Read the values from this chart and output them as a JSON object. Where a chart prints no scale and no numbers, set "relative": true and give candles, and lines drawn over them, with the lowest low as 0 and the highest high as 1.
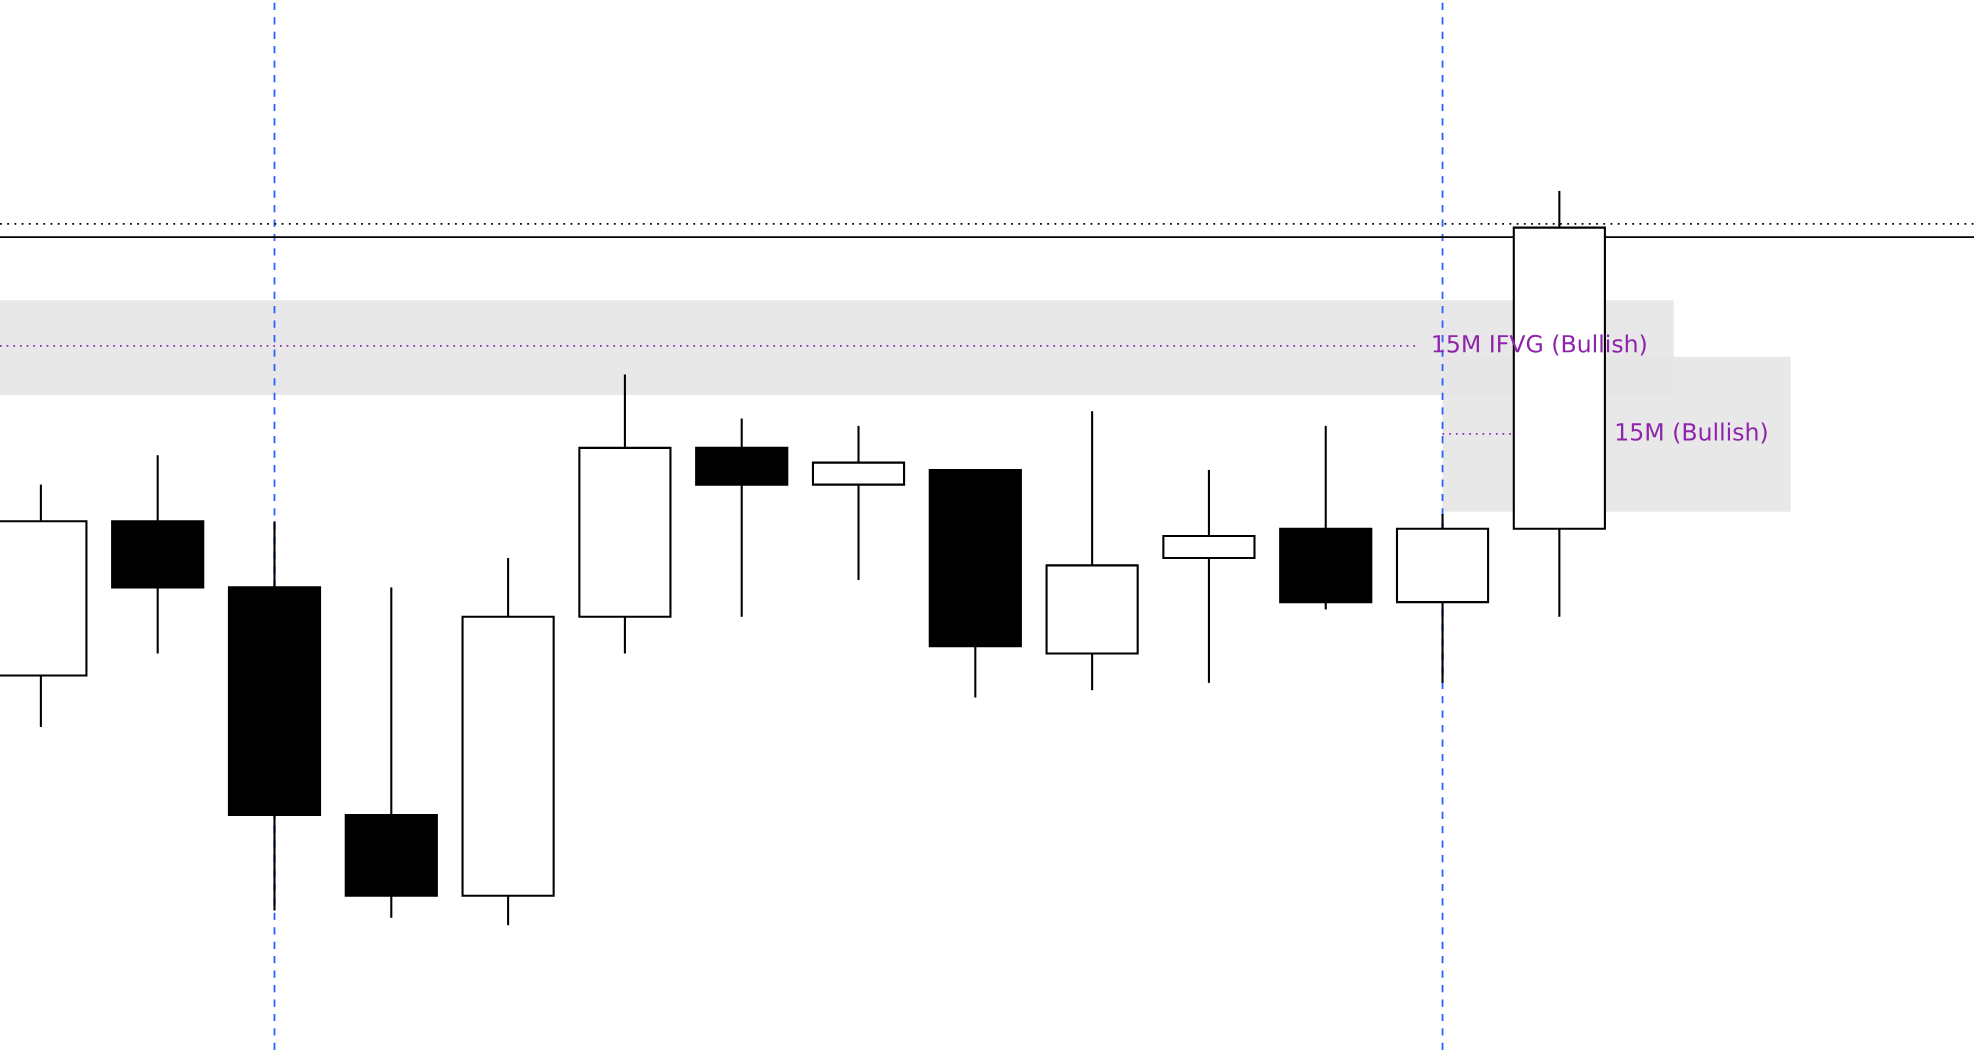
{
  "chart_data": {
    "type": "candlestick",
    "relative": true,
    "categories": [
      null,
      null,
      null,
      null,
      null,
      null,
      null,
      null,
      null,
      null,
      null,
      null,
      null,
      null
    ],
    "ohlc": [
      [
        0.34,
        0.6,
        0.27,
        0.55
      ],
      [
        0.55,
        0.64,
        0.37,
        0.46
      ],
      [
        0.46,
        0.55,
        0.02,
        0.15
      ],
      [
        0.15,
        0.46,
        0.01,
        0.04
      ],
      [
        0.04,
        0.5,
        0.0,
        0.42
      ],
      [
        0.42,
        0.75,
        0.37,
        0.65
      ],
      [
        0.65,
        0.69,
        0.42,
        0.6
      ],
      [
        0.6,
        0.68,
        0.47,
        0.63
      ],
      [
        0.62,
        0.62,
        0.31,
        0.38
      ],
      [
        0.37,
        0.7,
        0.32,
        0.49
      ],
      [
        0.5,
        0.62,
        0.33,
        0.53
      ],
      [
        0.54,
        0.68,
        0.43,
        0.44
      ],
      [
        0.44,
        0.56,
        0.33,
        0.54
      ],
      [
        0.54,
        1.0,
        0.42,
        0.95
      ]
    ],
    "ref_lines": [
      {
        "axis": "y",
        "value": 0.955,
        "color": "#000000",
        "line_style": "dotted"
      },
      {
        "axis": "y",
        "value": 0.937,
        "color": "#000000",
        "line_style": "solid"
      },
      {
        "axis": "y",
        "value": 0.789,
        "color": "#8e24aa",
        "line_style": "dotted"
      },
      {
        "axis": "y",
        "value": 0.669,
        "color": "#8e24aa",
        "line_style": "dotted"
      }
    ],
    "bands": [
      {
        "axis": "y",
        "from": 0.722,
        "to": 0.851,
        "label": "15M IFVG (Bullish)",
        "color": "#e6e6e6"
      },
      {
        "axis": "y",
        "from": 0.563,
        "to": 0.774,
        "label": "15M (Bullish)",
        "color": "#e6e6e6"
      }
    ]
  }
}
